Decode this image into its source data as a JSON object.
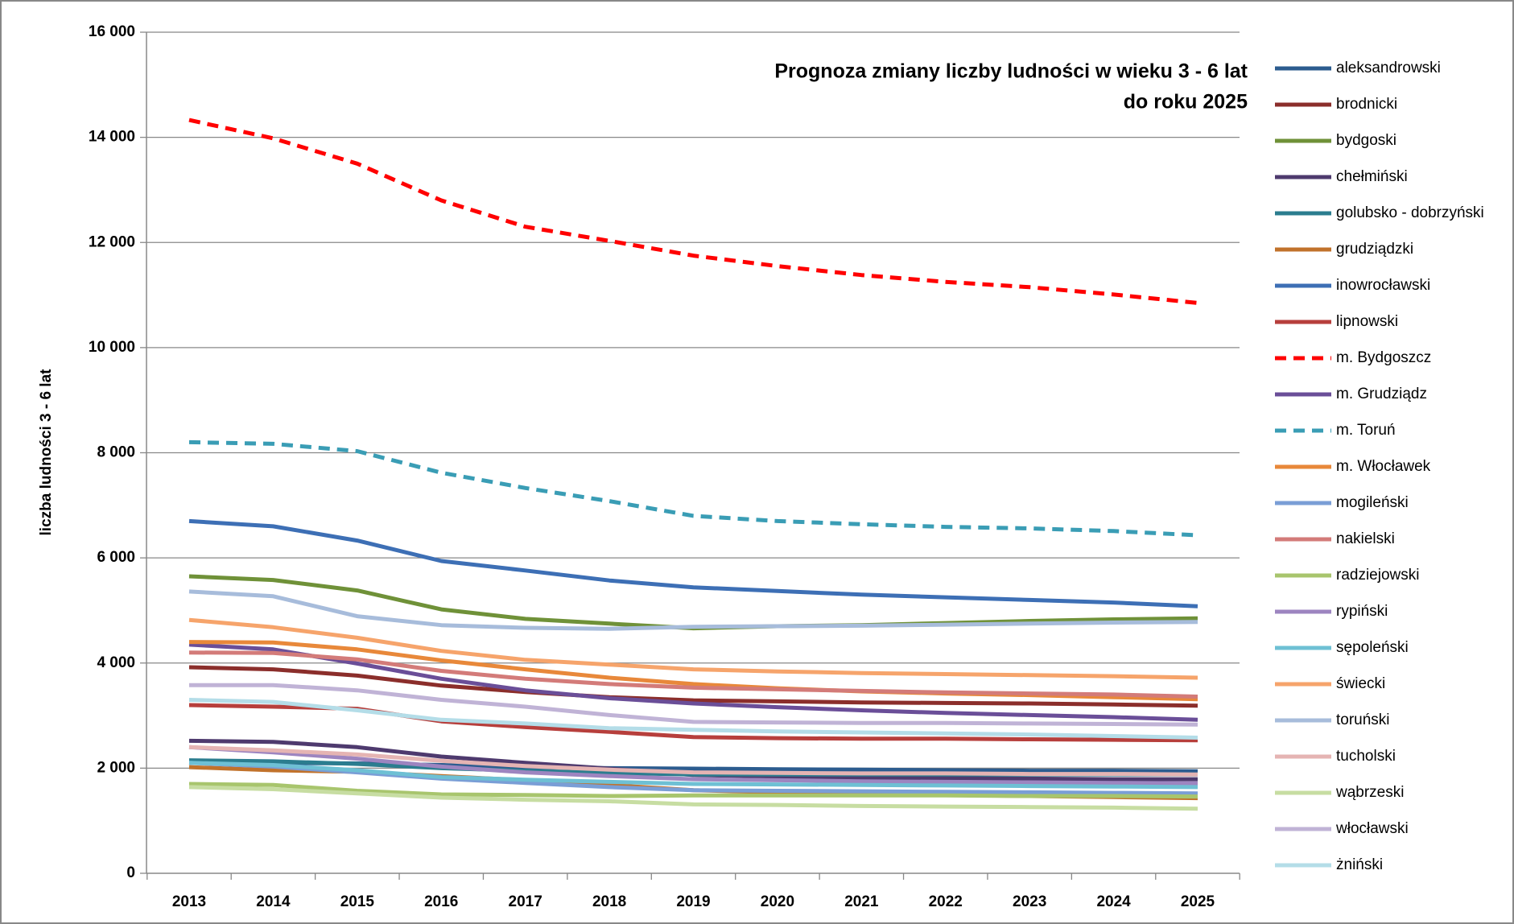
{
  "chart_data": {
    "type": "line",
    "title": [
      "Prognoza zmiany liczby ludności w wieku 3 - 6 lat",
      "do roku 2025"
    ],
    "y_label": "liczba ludności 3 - 6 lat",
    "categories": [
      "2013",
      "2014",
      "2015",
      "2016",
      "2017",
      "2018",
      "2019",
      "2020",
      "2021",
      "2022",
      "2023",
      "2024",
      "2025"
    ],
    "ylim": [
      0,
      16000
    ],
    "yticks": [
      0,
      {
        "value": 2000,
        "label": "2 000"
      },
      {
        "value": 4000,
        "label": "4 000"
      },
      {
        "value": 6000,
        "label": "6 000"
      },
      {
        "value": 8000,
        "label": "8 000"
      },
      {
        "value": 10000,
        "label": "10 000"
      },
      {
        "value": 12000,
        "label": "12 000"
      },
      {
        "value": 14000,
        "label": "14 000"
      },
      {
        "value": 16000,
        "label": "16 000"
      }
    ],
    "grid": true,
    "legend": "right",
    "series": [
      {
        "name": "aleksandrowski",
        "color": "#2C5C8F",
        "values": [
          2100,
          2100,
          2090,
          2060,
          2020,
          2000,
          1990,
          1980,
          1970,
          1960,
          1950,
          1950,
          1940
        ]
      },
      {
        "name": "brodnicki",
        "color": "#8B2E2B",
        "values": [
          3920,
          3880,
          3760,
          3570,
          3450,
          3350,
          3290,
          3270,
          3250,
          3240,
          3230,
          3210,
          3190
        ]
      },
      {
        "name": "bydgoski",
        "color": "#6F9138",
        "values": [
          5650,
          5580,
          5380,
          5020,
          4840,
          4750,
          4660,
          4700,
          4720,
          4760,
          4800,
          4830,
          4850
        ]
      },
      {
        "name": "chełmiński",
        "color": "#4E3A6E",
        "values": [
          2520,
          2500,
          2400,
          2220,
          2100,
          1990,
          1870,
          1840,
          1820,
          1810,
          1800,
          1790,
          1790
        ]
      },
      {
        "name": "golubsko - dobrzyński",
        "color": "#2B7D8F",
        "values": [
          2150,
          2130,
          2080,
          2000,
          1950,
          1910,
          1880,
          1880,
          1880,
          1880,
          1880,
          1880,
          1880
        ]
      },
      {
        "name": "grudziądzki",
        "color": "#C1722B",
        "values": [
          2020,
          1960,
          1930,
          1850,
          1770,
          1680,
          1580,
          1540,
          1510,
          1490,
          1470,
          1450,
          1430
        ]
      },
      {
        "name": "inowrocławski",
        "color": "#3D6FB5",
        "values": [
          6700,
          6600,
          6330,
          5940,
          5760,
          5570,
          5440,
          5370,
          5300,
          5250,
          5200,
          5150,
          5080
        ]
      },
      {
        "name": "lipnowski",
        "color": "#B73F3C",
        "values": [
          3200,
          3170,
          3130,
          2890,
          2780,
          2690,
          2590,
          2570,
          2560,
          2560,
          2550,
          2540,
          2530
        ]
      },
      {
        "name": "m. Bydgoszcz",
        "color": "#FF0000",
        "dashed": true,
        "values": [
          14330,
          13980,
          13500,
          12800,
          12300,
          12030,
          11750,
          11550,
          11380,
          11250,
          11150,
          11010,
          10850
        ]
      },
      {
        "name": "m. Grudziądz",
        "color": "#6A4E98",
        "values": [
          4350,
          4260,
          3990,
          3700,
          3480,
          3330,
          3230,
          3160,
          3100,
          3050,
          3010,
          2970,
          2920
        ]
      },
      {
        "name": "m. Toruń",
        "color": "#3A9DB5",
        "dashed": true,
        "values": [
          8200,
          8170,
          8030,
          7620,
          7330,
          7080,
          6800,
          6700,
          6640,
          6590,
          6560,
          6510,
          6430
        ]
      },
      {
        "name": "m. Włocławek",
        "color": "#E8883A",
        "values": [
          4400,
          4390,
          4260,
          4050,
          3880,
          3720,
          3600,
          3520,
          3460,
          3420,
          3390,
          3350,
          3310
        ]
      },
      {
        "name": "mogileński",
        "color": "#7A9ED6",
        "values": [
          2100,
          2030,
          1920,
          1800,
          1720,
          1640,
          1580,
          1570,
          1560,
          1550,
          1540,
          1530,
          1520
        ]
      },
      {
        "name": "nakielski",
        "color": "#D37B79",
        "values": [
          4200,
          4190,
          4070,
          3850,
          3700,
          3600,
          3530,
          3500,
          3470,
          3440,
          3420,
          3400,
          3360
        ]
      },
      {
        "name": "radziejowski",
        "color": "#A8C56D",
        "values": [
          1700,
          1680,
          1570,
          1500,
          1490,
          1470,
          1480,
          1480,
          1480,
          1480,
          1470,
          1470,
          1460
        ]
      },
      {
        "name": "rypiński",
        "color": "#9D85C0",
        "values": [
          2400,
          2300,
          2180,
          2030,
          1920,
          1850,
          1790,
          1770,
          1750,
          1740,
          1730,
          1720,
          1710
        ]
      },
      {
        "name": "sępoleński",
        "color": "#6EC0D4",
        "values": [
          2100,
          2060,
          1960,
          1830,
          1780,
          1740,
          1700,
          1690,
          1680,
          1670,
          1660,
          1650,
          1640
        ]
      },
      {
        "name": "świecki",
        "color": "#F6A46B",
        "values": [
          4820,
          4680,
          4480,
          4230,
          4060,
          3970,
          3880,
          3840,
          3810,
          3790,
          3770,
          3750,
          3720
        ]
      },
      {
        "name": "toruński",
        "color": "#A7BCDB",
        "values": [
          5360,
          5270,
          4890,
          4720,
          4670,
          4650,
          4690,
          4700,
          4710,
          4730,
          4750,
          4770,
          4780
        ]
      },
      {
        "name": "tucholski",
        "color": "#E5B4B3",
        "values": [
          2400,
          2340,
          2260,
          2140,
          2040,
          1970,
          1920,
          1910,
          1900,
          1900,
          1890,
          1890,
          1880
        ]
      },
      {
        "name": "wąbrzeski",
        "color": "#C7DDA2",
        "values": [
          1640,
          1600,
          1520,
          1440,
          1400,
          1370,
          1310,
          1300,
          1280,
          1270,
          1260,
          1250,
          1230
        ]
      },
      {
        "name": "włocławski",
        "color": "#C0B3D6",
        "values": [
          3580,
          3580,
          3480,
          3300,
          3170,
          3010,
          2880,
          2870,
          2860,
          2860,
          2850,
          2840,
          2830
        ]
      },
      {
        "name": "żniński",
        "color": "#B4DDE8",
        "values": [
          3300,
          3260,
          3100,
          2920,
          2850,
          2760,
          2730,
          2700,
          2680,
          2660,
          2640,
          2610,
          2580
        ]
      }
    ]
  }
}
